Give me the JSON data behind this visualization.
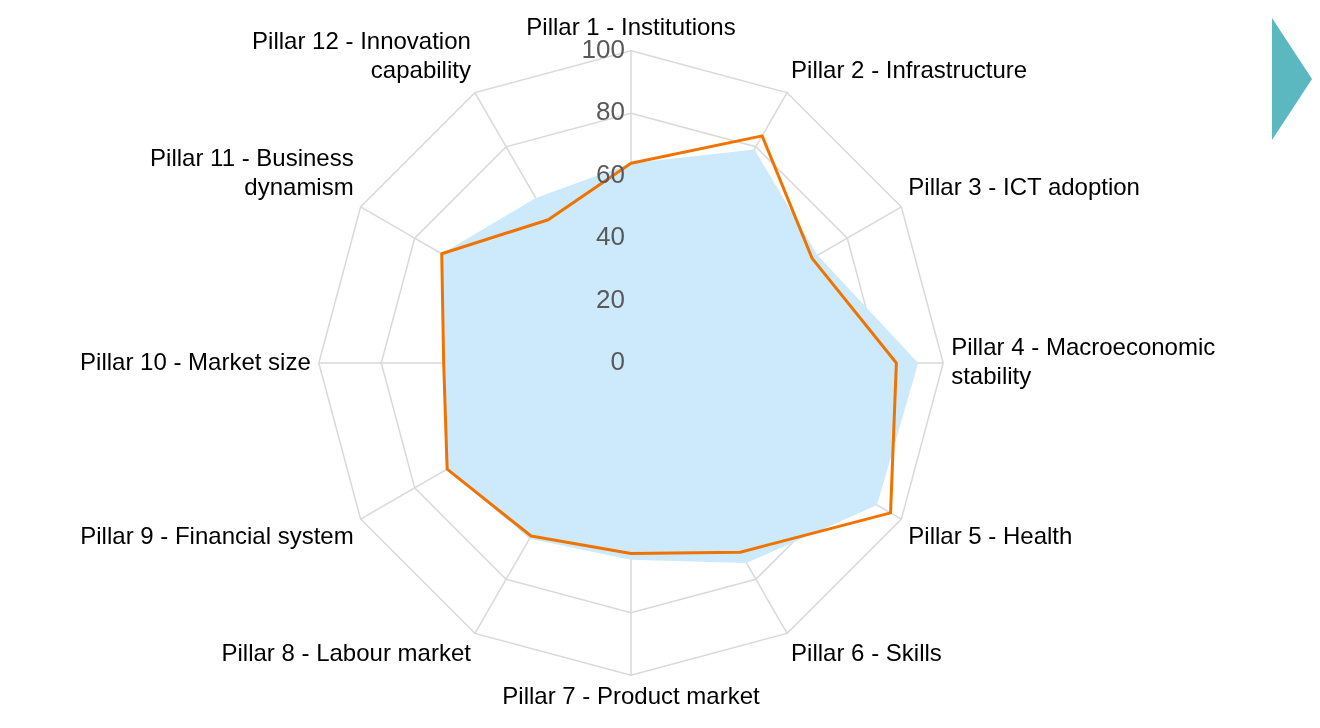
{
  "chart_data": {
    "type": "radar",
    "categories": [
      "Pillar 1 - Institutions",
      "Pillar 2 - Infrastructure",
      "Pillar 3 - ICT adoption",
      "Pillar 4 - Macroeconomic stability",
      "Pillar 5 - Health",
      "Pillar 6 - Skills",
      "Pillar 7 - Product market",
      "Pillar 8 - Labour market",
      "Pillar 9 - Financial system",
      "Pillar 10 - Market size",
      "Pillar 11 - Business dynamism",
      "Pillar 12 - Innovation capability"
    ],
    "series": [
      {
        "type": "area",
        "color": "#cdeafc",
        "values": [
          64,
          79,
          69,
          92,
          91,
          74,
          63,
          65,
          68,
          60,
          70,
          61
        ]
      },
      {
        "color": "#f07300",
        "values": [
          64,
          84,
          67,
          85,
          96,
          70,
          61,
          64,
          68,
          60,
          70,
          53
        ]
      }
    ],
    "ylim": [
      0,
      100
    ],
    "yticks": [
      0,
      20,
      40,
      60,
      80,
      100
    ],
    "grid": true,
    "legend": false,
    "marker": "none"
  }
}
